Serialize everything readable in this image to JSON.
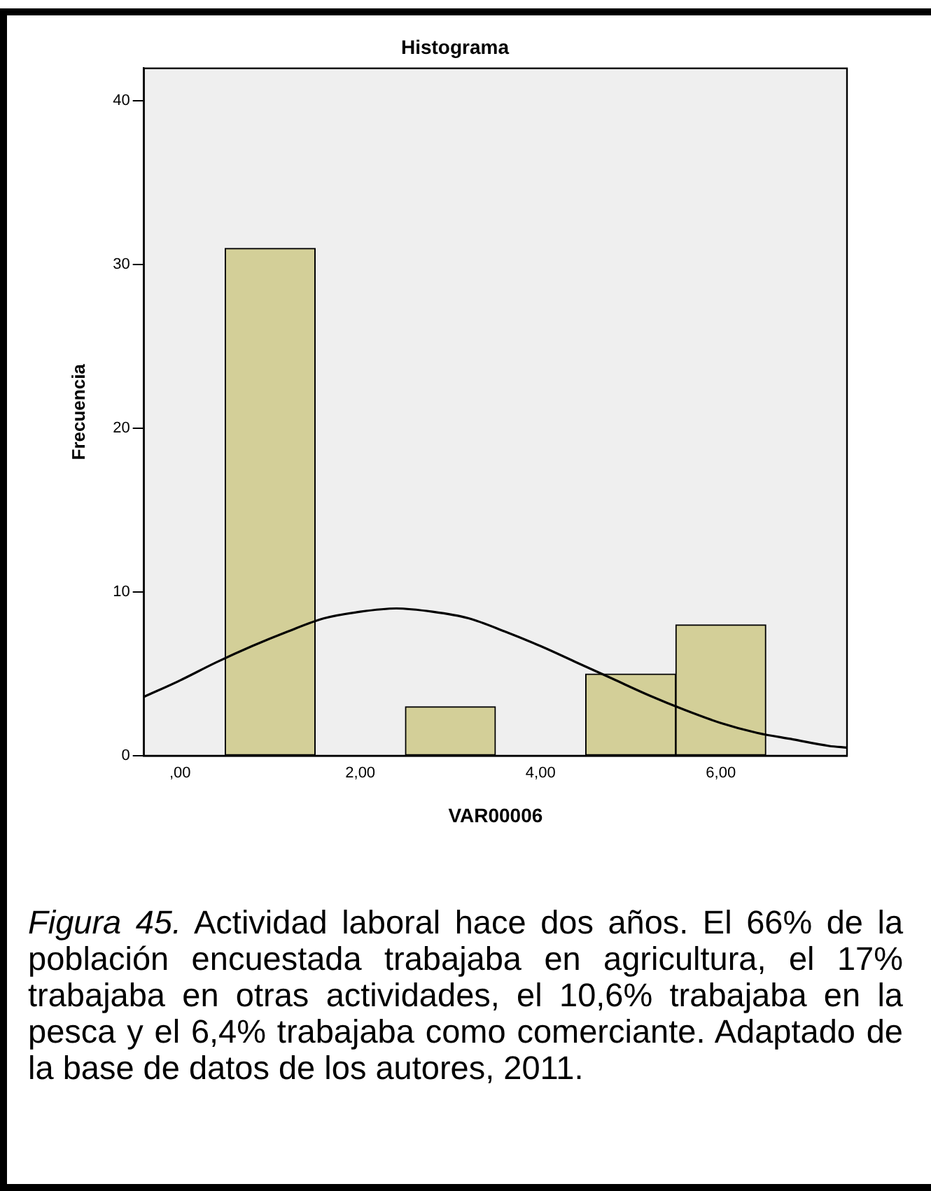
{
  "chart_data": {
    "type": "histogram",
    "title": "Histograma",
    "xlabel": "VAR00006",
    "ylabel": "Frecuencia",
    "bins": [
      0.5,
      1.5,
      2.5,
      3.5,
      4.5,
      5.5,
      6.5
    ],
    "series": [
      {
        "type": "histogram",
        "color": "#d3cf98",
        "values": [
          31,
          0,
          3,
          0,
          5,
          8
        ]
      },
      {
        "type": "line",
        "color": "#000000",
        "x": [
          -0.4,
          0,
          0.4,
          0.8,
          1.2,
          1.6,
          2.0,
          2.4,
          2.8,
          3.2,
          3.6,
          4.0,
          4.4,
          4.8,
          5.2,
          5.6,
          6.0,
          6.4,
          6.8,
          7.2,
          7.4
        ],
        "values": [
          3.6,
          4.6,
          5.7,
          6.7,
          7.6,
          8.4,
          8.8,
          9.0,
          8.8,
          8.4,
          7.6,
          6.7,
          5.7,
          4.7,
          3.7,
          2.8,
          2.0,
          1.4,
          1.0,
          0.6,
          0.5
        ]
      }
    ],
    "xlim": [
      -0.4,
      7.4
    ],
    "xticks": [
      {
        "value": 0,
        "label": ",00"
      },
      {
        "value": 2,
        "label": "2,00"
      },
      {
        "value": 4,
        "label": "4,00"
      },
      {
        "value": 6,
        "label": "6,00"
      }
    ],
    "ylim": [
      0,
      42
    ],
    "yticks": [
      0,
      10,
      20,
      30,
      40
    ],
    "grid": false,
    "legend": false,
    "marker": "none",
    "annotations": [
      "Figura 45.",
      "Actividad laboral hace dos años. El 66% de la población encuestada trabajaba en agricultura, el 17% trabajaba en otras actividades, el 10,6% trabajaba en la pesca y el 6,4% trabajaba como comerciante. Adaptado de la base de datos de los autores, 2011."
    ]
  }
}
